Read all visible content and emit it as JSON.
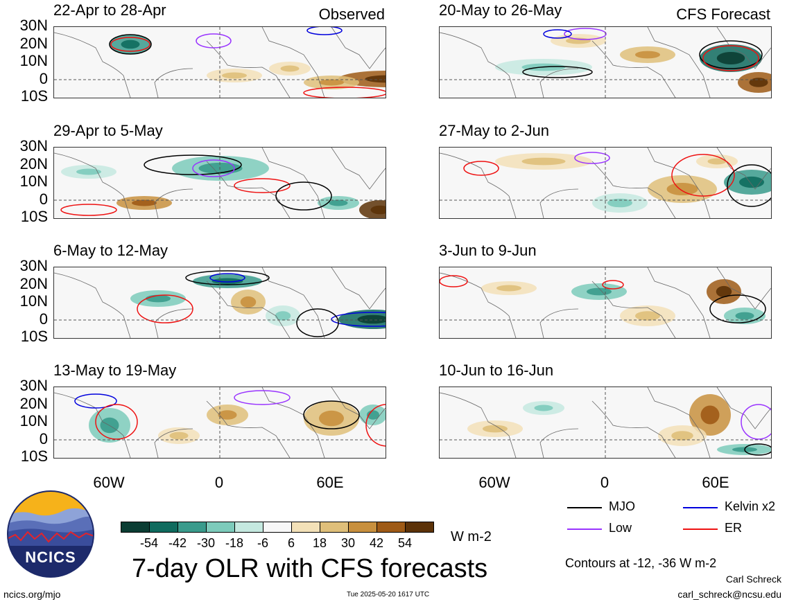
{
  "panels": [
    {
      "title": "22-Apr to 28-Apr",
      "tag": "Observed"
    },
    {
      "title": "29-Apr to 5-May",
      "tag": ""
    },
    {
      "title": "6-May to 12-May",
      "tag": ""
    },
    {
      "title": "13-May to 19-May",
      "tag": ""
    },
    {
      "title": "20-May to 26-May",
      "tag": "CFS Forecast"
    },
    {
      "title": "27-May to 2-Jun",
      "tag": ""
    },
    {
      "title": "3-Jun to 9-Jun",
      "tag": ""
    },
    {
      "title": "10-Jun to 16-Jun",
      "tag": ""
    }
  ],
  "lat_labels": [
    "30N",
    "20N",
    "10N",
    "0",
    "10S"
  ],
  "lon_labels": [
    "60W",
    "0",
    "60E"
  ],
  "colorbar": {
    "colors": [
      "#0b3d33",
      "#0f6b5e",
      "#3a9b8c",
      "#7dcbbb",
      "#c5e9e0",
      "#f7f7f7",
      "#f3e1b8",
      "#dfbf7a",
      "#c8903e",
      "#9e5a16",
      "#5c3208"
    ],
    "labels": [
      "-54",
      "-42",
      "-30",
      "-18",
      "-6",
      "6",
      "18",
      "30",
      "42",
      "54"
    ],
    "unit": "W m-2"
  },
  "legend": [
    {
      "label": "MJO",
      "color": "#000000"
    },
    {
      "label": "Kelvin x2",
      "color": "#0000dd"
    },
    {
      "label": "Low",
      "color": "#9933ff"
    },
    {
      "label": "ER",
      "color": "#ee1111"
    }
  ],
  "contours_note": "Contours at -12, -36 W m-2",
  "main_title": "7-day OLR with CFS forecasts",
  "logo_text": "NCICS",
  "website": "ncics.org/mjo",
  "timestamp": "Tue 2025-05-20 1617 UTC",
  "author": "Carl Schreck",
  "email": "carl_schreck@ncsu.edu"
}
